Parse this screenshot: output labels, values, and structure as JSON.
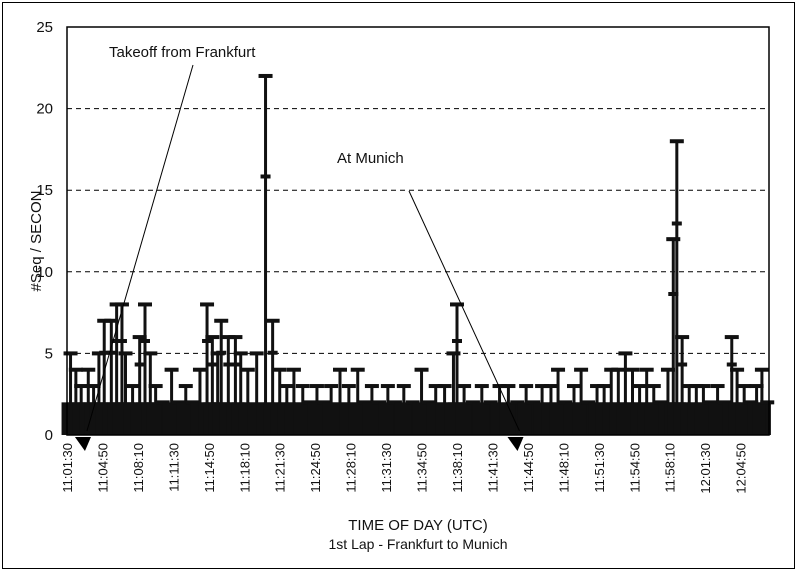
{
  "chart_data": {
    "type": "bar",
    "title": "",
    "subtitle": "1st Lap - Frankfurt to Munich",
    "xlabel": "TIME OF DAY (UTC)",
    "ylabel": "#Seq / SECON",
    "ylim": [
      0,
      25
    ],
    "yticks": [
      "0",
      "5",
      "10",
      "15",
      "20",
      "25"
    ],
    "xlim": [
      "11:01:30",
      "12:07:30"
    ],
    "xticks": [
      "11:01:30",
      "11:04:50",
      "11:08:10",
      "11:11:30",
      "11:14:50",
      "11:18:10",
      "11:21:30",
      "11:24:50",
      "11:28:10",
      "11:31:30",
      "11:34:50",
      "11:38:10",
      "11:41:30",
      "11:44:50",
      "11:48:10",
      "11:51:30",
      "11:54:50",
      "11:58:10",
      "12:01:30",
      "12:04:50"
    ],
    "grid": "horizontal dashed",
    "annotations": [
      {
        "text": "Takeoff from Frankfurt",
        "time": "11:03:00"
      },
      {
        "text": "At Munich",
        "time": "11:43:40"
      }
    ],
    "series": [
      {
        "values": [
          [
            "11:01:50",
            5
          ],
          [
            "11:02:20",
            4
          ],
          [
            "11:02:50",
            3
          ],
          [
            "11:03:30",
            4
          ],
          [
            "11:04:00",
            3
          ],
          [
            "11:04:30",
            5
          ],
          [
            "11:05:00",
            7
          ],
          [
            "11:05:40",
            7
          ],
          [
            "11:06:10",
            8
          ],
          [
            "11:06:40",
            8
          ],
          [
            "11:07:00",
            5
          ],
          [
            "11:07:40",
            3
          ],
          [
            "11:08:20",
            6
          ],
          [
            "11:08:50",
            8
          ],
          [
            "11:09:20",
            5
          ],
          [
            "11:09:50",
            3
          ],
          [
            "11:10:30",
            2
          ],
          [
            "11:11:20",
            4
          ],
          [
            "11:12:00",
            2
          ],
          [
            "11:12:40",
            3
          ],
          [
            "11:13:20",
            2
          ],
          [
            "11:14:00",
            4
          ],
          [
            "11:14:40",
            8
          ],
          [
            "11:15:10",
            6
          ],
          [
            "11:15:40",
            5
          ],
          [
            "11:16:00",
            7
          ],
          [
            "11:16:40",
            6
          ],
          [
            "11:17:20",
            6
          ],
          [
            "11:17:50",
            5
          ],
          [
            "11:18:30",
            4
          ],
          [
            "11:19:20",
            5
          ],
          [
            "11:20:10",
            22
          ],
          [
            "11:20:50",
            7
          ],
          [
            "11:21:30",
            4
          ],
          [
            "11:22:10",
            3
          ],
          [
            "11:22:50",
            4
          ],
          [
            "11:23:40",
            3
          ],
          [
            "11:24:20",
            2
          ],
          [
            "11:25:00",
            3
          ],
          [
            "11:25:40",
            2
          ],
          [
            "11:26:20",
            3
          ],
          [
            "11:27:10",
            4
          ],
          [
            "11:28:00",
            3
          ],
          [
            "11:28:50",
            4
          ],
          [
            "11:29:30",
            2
          ],
          [
            "11:30:10",
            3
          ],
          [
            "11:30:50",
            2
          ],
          [
            "11:31:40",
            3
          ],
          [
            "11:32:20",
            2
          ],
          [
            "11:33:10",
            3
          ],
          [
            "11:34:00",
            2
          ],
          [
            "11:34:50",
            4
          ],
          [
            "11:35:30",
            2
          ],
          [
            "11:36:10",
            3
          ],
          [
            "11:37:00",
            3
          ],
          [
            "11:37:50",
            5
          ],
          [
            "11:38:10",
            8
          ],
          [
            "11:38:50",
            3
          ],
          [
            "11:39:40",
            2
          ],
          [
            "11:40:30",
            3
          ],
          [
            "11:41:20",
            2
          ],
          [
            "11:42:10",
            3
          ],
          [
            "11:43:00",
            3
          ],
          [
            "11:43:50",
            2
          ],
          [
            "11:44:40",
            3
          ],
          [
            "11:45:20",
            2
          ],
          [
            "11:46:10",
            3
          ],
          [
            "11:47:00",
            3
          ],
          [
            "11:47:40",
            4
          ],
          [
            "11:48:20",
            2
          ],
          [
            "11:49:10",
            3
          ],
          [
            "11:49:50",
            4
          ],
          [
            "11:50:30",
            2
          ],
          [
            "11:51:20",
            3
          ],
          [
            "11:52:00",
            3
          ],
          [
            "11:52:40",
            4
          ],
          [
            "11:53:20",
            4
          ],
          [
            "11:54:00",
            5
          ],
          [
            "11:54:40",
            4
          ],
          [
            "11:55:20",
            3
          ],
          [
            "11:56:00",
            4
          ],
          [
            "11:56:40",
            3
          ],
          [
            "11:57:20",
            2
          ],
          [
            "11:58:00",
            4
          ],
          [
            "11:58:30",
            12
          ],
          [
            "11:58:50",
            18
          ],
          [
            "11:59:20",
            6
          ],
          [
            "12:00:00",
            3
          ],
          [
            "12:00:40",
            3
          ],
          [
            "12:01:20",
            3
          ],
          [
            "12:02:00",
            2
          ],
          [
            "12:02:40",
            3
          ],
          [
            "12:03:20",
            2
          ],
          [
            "12:04:00",
            6
          ],
          [
            "12:04:30",
            4
          ],
          [
            "12:05:10",
            3
          ],
          [
            "12:05:50",
            2
          ],
          [
            "12:06:20",
            3
          ],
          [
            "12:06:50",
            4
          ],
          [
            "12:07:20",
            2
          ]
        ]
      }
    ]
  }
}
